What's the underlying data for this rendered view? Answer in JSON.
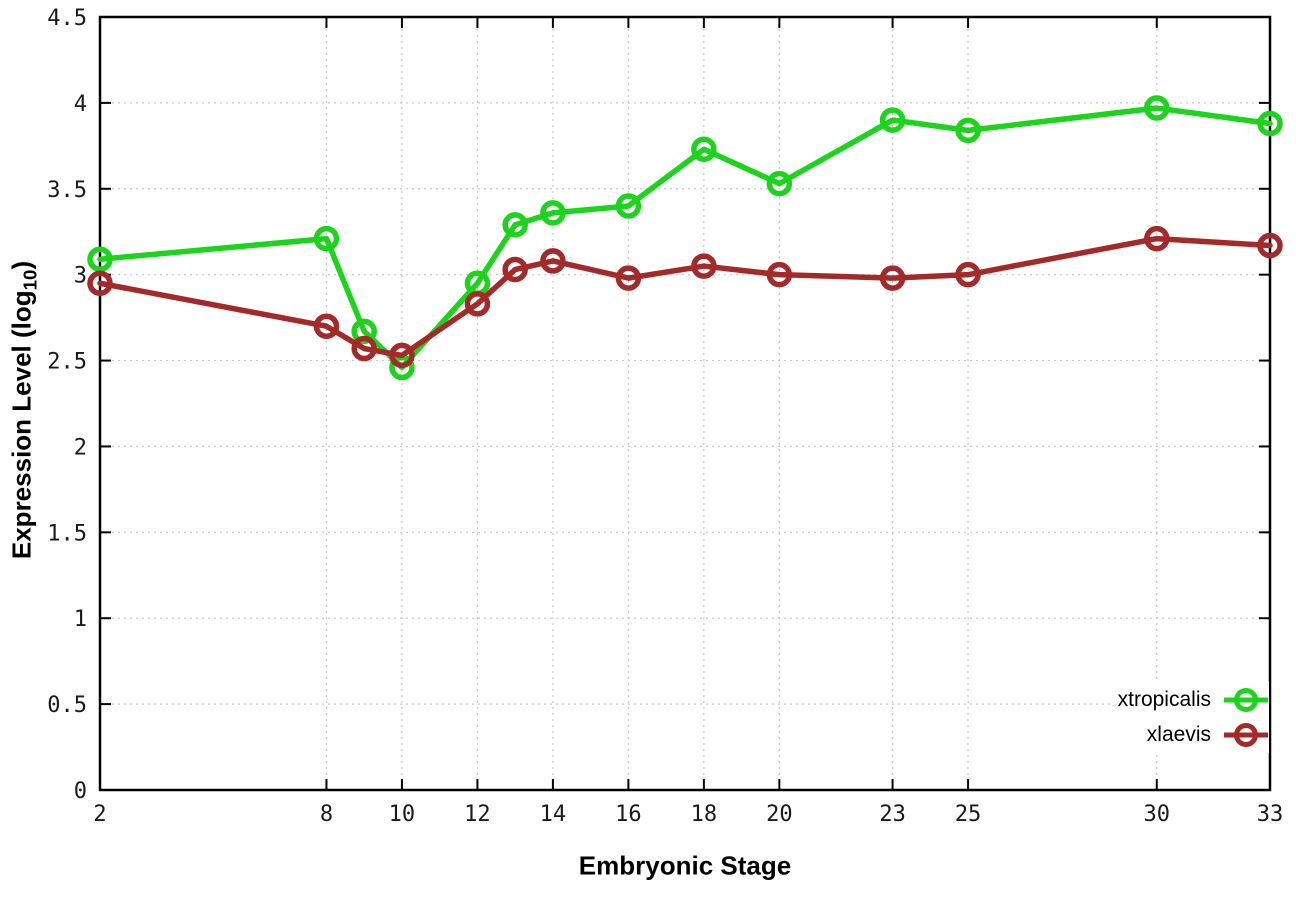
{
  "figure": {
    "background": "#ffffff",
    "axis_color": "#000000",
    "grid_color": "#c9c9c9",
    "tick_label_color": "#1a1a1a"
  },
  "chart_data": {
    "type": "line",
    "title": "",
    "xlabel": "Embryonic Stage",
    "ylabel": "Expression Level (log10)",
    "ylabel_parts": {
      "main": "Expression Level (log",
      "sub": "10",
      "close": ")"
    },
    "x": [
      2,
      8,
      9,
      10,
      12,
      13,
      14,
      16,
      18,
      20,
      23,
      25,
      30,
      33
    ],
    "xlim": [
      2,
      33
    ],
    "ylim": [
      0,
      4.5
    ],
    "x_tick_values": [
      2,
      8,
      10,
      12,
      14,
      16,
      18,
      20,
      23,
      25,
      30,
      33
    ],
    "x_tick_labels": [
      "2",
      "8",
      "10",
      "12",
      "14",
      "16",
      "18",
      "20",
      "23",
      "25",
      "30",
      "33"
    ],
    "y_ticks": [
      0,
      0.5,
      1,
      1.5,
      2,
      2.5,
      3,
      3.5,
      4,
      4.5
    ],
    "y_tick_labels": [
      "0",
      "0.5",
      "1",
      "1.5",
      "2",
      "2.5",
      "3",
      "3.5",
      "4",
      "4.5"
    ],
    "grid": true,
    "grid_style": "dotted",
    "legend_position": "inside-bottom-right",
    "marker": "open-circle",
    "marker_radius": 10,
    "line_width": 5.5,
    "series": [
      {
        "name": "xtropicalis",
        "color": "#1bd41b",
        "values": [
          3.09,
          3.21,
          2.67,
          2.46,
          2.95,
          3.29,
          3.36,
          3.4,
          3.73,
          3.53,
          3.9,
          3.84,
          3.97,
          3.88
        ]
      },
      {
        "name": "xlaevis",
        "color": "#a42a2a",
        "values": [
          2.95,
          2.7,
          2.57,
          2.53,
          2.83,
          3.03,
          3.08,
          2.98,
          3.05,
          3.0,
          2.98,
          3.0,
          3.21,
          3.17
        ]
      }
    ]
  }
}
